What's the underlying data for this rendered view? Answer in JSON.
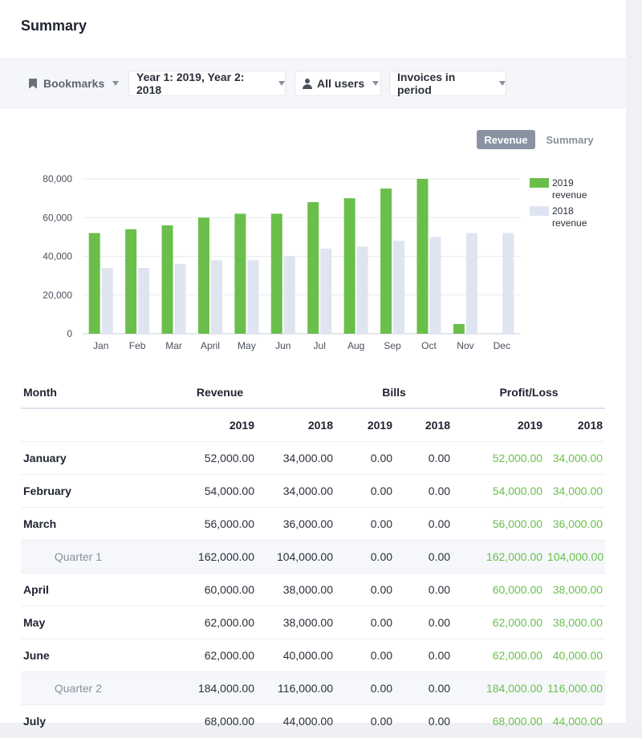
{
  "header": {
    "title": "Summary"
  },
  "filters": {
    "bookmarks": "Bookmarks",
    "years": "Year 1: 2019, Year 2: 2018",
    "users": "All users",
    "invoices": "Invoices in period"
  },
  "view_toggle": {
    "revenue": "Revenue",
    "summary": "Summary",
    "active": "Revenue"
  },
  "colors": {
    "series_2019": "#6abf4b",
    "series_2018": "#dfe5f0",
    "profit_positive": "#6abf4b"
  },
  "chart_data": {
    "type": "bar",
    "categories": [
      "Jan",
      "Feb",
      "Mar",
      "Apr",
      "May",
      "Jun",
      "Jul",
      "Aug",
      "Sep",
      "Oct",
      "Nov",
      "Dec"
    ],
    "category_labels": [
      "Jan",
      "Feb",
      "Mar",
      "April",
      "May",
      "Jun",
      "Jul",
      "Aug",
      "Sep",
      "Oct",
      "Nov",
      "Dec"
    ],
    "series": [
      {
        "name": "2019 revenue",
        "legend_lines": [
          "2019",
          "revenue"
        ],
        "values": [
          52000,
          54000,
          56000,
          60000,
          62000,
          62000,
          68000,
          70000,
          75000,
          80000,
          5000,
          0
        ]
      },
      {
        "name": "2018 revenue",
        "legend_lines": [
          "2018",
          "revenue"
        ],
        "values": [
          34000,
          34000,
          36000,
          38000,
          38000,
          40000,
          44000,
          45000,
          48000,
          50000,
          52000,
          52000
        ]
      }
    ],
    "ylim": [
      0,
      80000
    ],
    "yticks": [
      0,
      20000,
      40000,
      60000,
      80000
    ],
    "ytick_labels": [
      "0",
      "20,000",
      "40,000",
      "60,000",
      "80,000"
    ],
    "grid": true,
    "legend": "right"
  },
  "table": {
    "headers": {
      "month": "Month",
      "revenue": "Revenue",
      "bills": "Bills",
      "profit": "Profit/Loss"
    },
    "years": [
      "2019",
      "2018",
      "2019",
      "2018",
      "2019",
      "2018"
    ],
    "rows": [
      {
        "type": "month",
        "label": "January",
        "values": [
          "52,000.00",
          "34,000.00",
          "0.00",
          "0.00",
          "52,000.00",
          "34,000.00"
        ]
      },
      {
        "type": "month",
        "label": "February",
        "values": [
          "54,000.00",
          "34,000.00",
          "0.00",
          "0.00",
          "54,000.00",
          "34,000.00"
        ]
      },
      {
        "type": "month",
        "label": "March",
        "values": [
          "56,000.00",
          "36,000.00",
          "0.00",
          "0.00",
          "56,000.00",
          "36,000.00"
        ]
      },
      {
        "type": "quarter",
        "label": "Quarter 1",
        "values": [
          "162,000.00",
          "104,000.00",
          "0.00",
          "0.00",
          "162,000.00",
          "104,000.00"
        ]
      },
      {
        "type": "month",
        "label": "April",
        "values": [
          "60,000.00",
          "38,000.00",
          "0.00",
          "0.00",
          "60,000.00",
          "38,000.00"
        ]
      },
      {
        "type": "month",
        "label": "May",
        "values": [
          "62,000.00",
          "38,000.00",
          "0.00",
          "0.00",
          "62,000.00",
          "38,000.00"
        ]
      },
      {
        "type": "month",
        "label": "June",
        "values": [
          "62,000.00",
          "40,000.00",
          "0.00",
          "0.00",
          "62,000.00",
          "40,000.00"
        ]
      },
      {
        "type": "quarter",
        "label": "Quarter 2",
        "values": [
          "184,000.00",
          "116,000.00",
          "0.00",
          "0.00",
          "184,000.00",
          "116,000.00"
        ]
      },
      {
        "type": "month",
        "label": "July",
        "values": [
          "68,000.00",
          "44,000.00",
          "0.00",
          "0.00",
          "68,000.00",
          "44,000.00"
        ]
      }
    ]
  }
}
